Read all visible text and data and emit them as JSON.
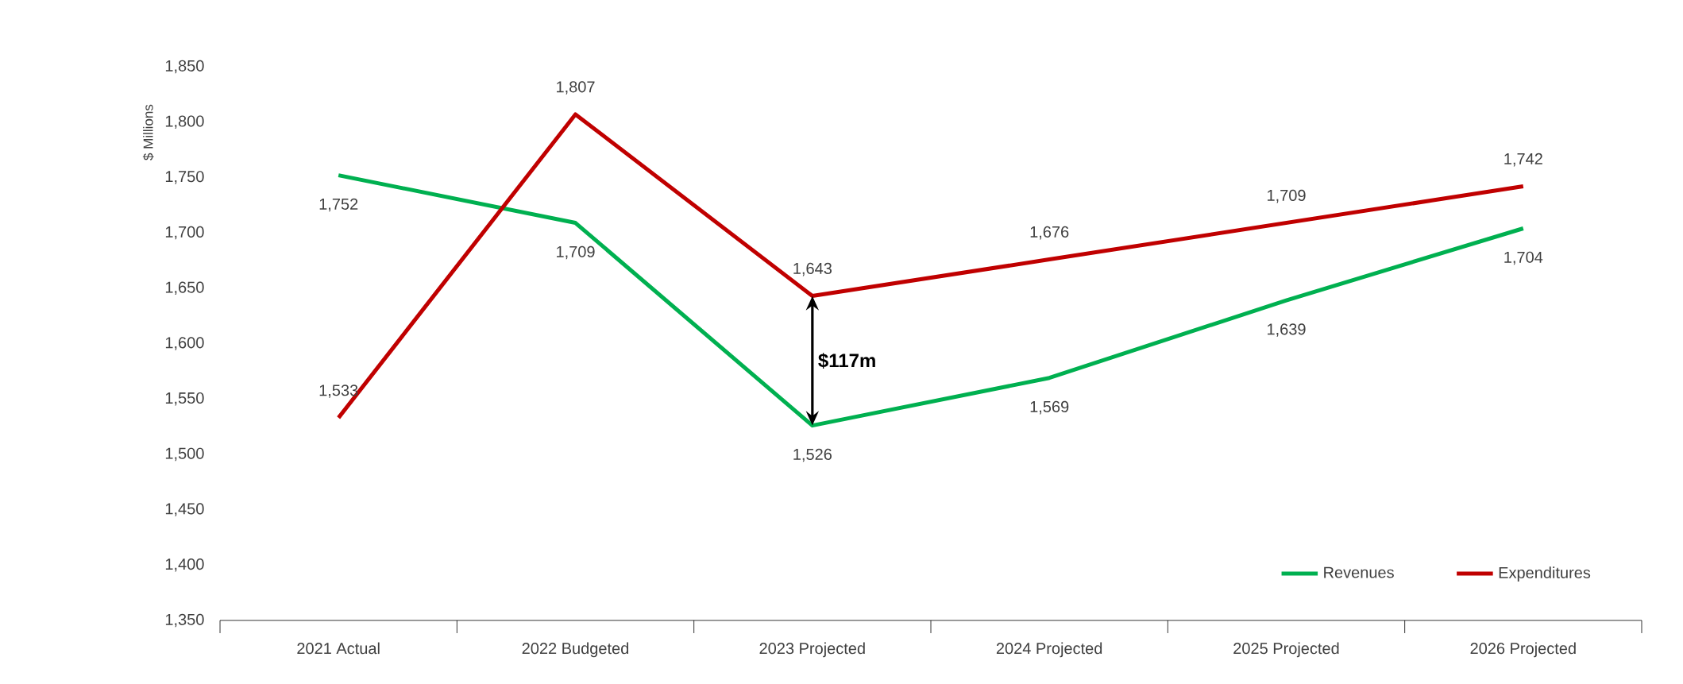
{
  "chart_data": {
    "type": "line",
    "ylabel": "$ Millions",
    "categories": [
      "2021 Actual",
      "2022 Budgeted",
      "2023 Projected",
      "2024 Projected",
      "2025 Projected",
      "2026 Projected"
    ],
    "series": [
      {
        "name": "Revenues",
        "color": "#00b050",
        "values": [
          1752,
          1709,
          1526,
          1569,
          1639,
          1704
        ],
        "value_labels": [
          "1,752",
          "1,709",
          "1,526",
          "1,569",
          "1,639",
          "1,704"
        ]
      },
      {
        "name": "Expenditures",
        "color": "#c00000",
        "values": [
          1533,
          1807,
          1643,
          1676,
          1709,
          1742
        ],
        "value_labels": [
          "1,533",
          "1,807",
          "1,643",
          "1,676",
          "1,709",
          "1,742"
        ]
      }
    ],
    "ylim": [
      1350,
      1850
    ],
    "yticks": [
      {
        "value": 1350,
        "label": "1,350"
      },
      {
        "value": 1400,
        "label": "1,400"
      },
      {
        "value": 1450,
        "label": "1,450"
      },
      {
        "value": 1500,
        "label": "1,500"
      },
      {
        "value": 1550,
        "label": "1,550"
      },
      {
        "value": 1600,
        "label": "1,600"
      },
      {
        "value": 1650,
        "label": "1,650"
      },
      {
        "value": 1700,
        "label": "1,700"
      },
      {
        "value": 1750,
        "label": "1,750"
      },
      {
        "value": 1800,
        "label": "1,800"
      },
      {
        "value": 1850,
        "label": "1,850"
      }
    ],
    "annotations": [
      "$117m"
    ],
    "legend": "bottom right",
    "grid": false,
    "marker": "none",
    "line_style": "solid"
  }
}
